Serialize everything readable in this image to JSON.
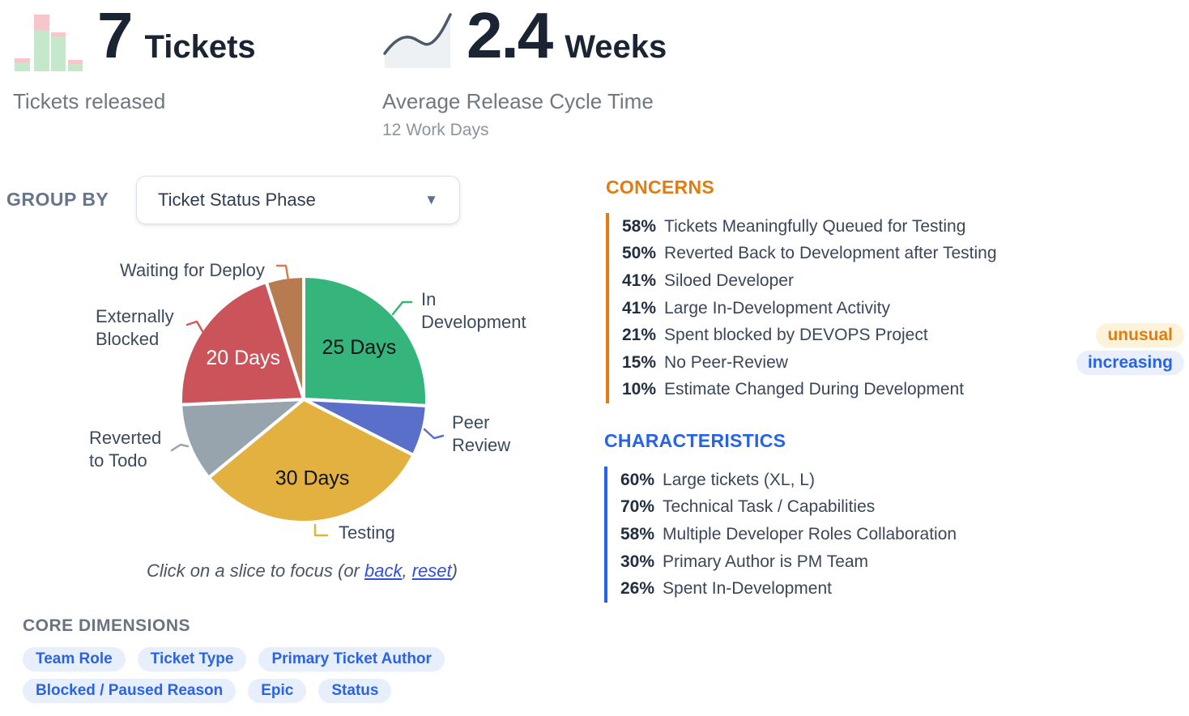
{
  "kpis": {
    "tickets": {
      "value": "7",
      "unit": "Tickets",
      "caption": "Tickets released"
    },
    "cycle": {
      "value": "2.4",
      "unit": "Weeks",
      "caption": "Average Release Cycle Time",
      "subcaption": "12 Work Days"
    }
  },
  "group_by": {
    "label": "GROUP BY",
    "selected_option": "Ticket Status Phase"
  },
  "chart_data": {
    "type": "pie",
    "unit": "days",
    "legend_position": "callout-labels",
    "slices": [
      {
        "label": "In Development",
        "label_lines": [
          "In",
          "Development"
        ],
        "days": 25,
        "inner_label": "25 Days",
        "angle_deg": 93,
        "color": "#35b57c",
        "inner_label_color": "#101418",
        "connector_color": "#35b57c"
      },
      {
        "label": "Peer Review",
        "label_lines": [
          "Peer",
          "Review"
        ],
        "days": 7,
        "inner_label": null,
        "angle_deg": 24,
        "color": "#5a6fca",
        "inner_label_color": null,
        "connector_color": "#5a6fca"
      },
      {
        "label": "Testing",
        "label_lines": [
          "Testing"
        ],
        "days": 30,
        "inner_label": "30 Days",
        "angle_deg": 113.5,
        "color": "#e2b13f",
        "inner_label_color": "#101418",
        "connector_color": "#e2b13f"
      },
      {
        "label": "Reverted to Todo",
        "label_lines": [
          "Reverted",
          "to Todo"
        ],
        "days": 10,
        "inner_label": null,
        "angle_deg": 37,
        "color": "#97a3ad",
        "inner_label_color": null,
        "connector_color": "#97a3ad"
      },
      {
        "label": "Externally Blocked",
        "label_lines": [
          "Externally",
          "Blocked"
        ],
        "days": 20,
        "inner_label": "20 Days",
        "angle_deg": 74.8,
        "color": "#cb545a",
        "inner_label_color": "#ffffff",
        "connector_color": "#d05c55"
      },
      {
        "label": "Waiting for Deploy",
        "label_lines": [
          "Waiting for Deploy"
        ],
        "days": 5,
        "inner_label": null,
        "angle_deg": 17.7,
        "color": "#b87a50",
        "inner_label_color": null,
        "connector_color": "#dd7950"
      }
    ],
    "caption": {
      "before": "Click on a slice to focus (or ",
      "back_link": "back",
      "separator": ", ",
      "reset_link": "reset",
      "after": ")"
    }
  },
  "concerns": {
    "title": "CONCERNS",
    "accent_color": "#e07c12",
    "items": [
      {
        "pct": "58%",
        "text": "Tickets Meaningfully Queued for Testing"
      },
      {
        "pct": "50%",
        "text": "Reverted Back to Development after Testing"
      },
      {
        "pct": "41%",
        "text": "Siloed Developer"
      },
      {
        "pct": "41%",
        "text": "Large In-Development Activity"
      },
      {
        "pct": "21%",
        "text": "Spent blocked by DEVOPS Project",
        "badge": {
          "label": "unusual",
          "color": "#e07c12",
          "background": "#fdf3da"
        }
      },
      {
        "pct": "15%",
        "text": "No Peer-Review",
        "badge": {
          "label": "increasing",
          "color": "#2563eb",
          "background": "#e9effd"
        }
      },
      {
        "pct": "10%",
        "text": "Estimate Changed During Development"
      }
    ]
  },
  "characteristics": {
    "title": "CHARACTERISTICS",
    "accent_color": "#2563eb",
    "items": [
      {
        "pct": "60%",
        "text": "Large tickets (XL, L)"
      },
      {
        "pct": "70%",
        "text": "Technical Task / Capabilities"
      },
      {
        "pct": "58%",
        "text": "Multiple Developer Roles Collaboration"
      },
      {
        "pct": "30%",
        "text": "Primary Author is PM Team"
      },
      {
        "pct": "26%",
        "text": "Spent In-Development"
      }
    ]
  },
  "core_dimensions": {
    "title": "CORE DIMENSIONS",
    "pill_color": "#2b63e8",
    "pill_background": "#e7eefc",
    "rows": [
      [
        "Team Role",
        "Ticket Type",
        "Primary Ticket Author"
      ],
      [
        "Blocked / Paused Reason",
        "Epic",
        "Status"
      ]
    ]
  },
  "icons": {
    "tickets_kpi": "bar-chart-icon",
    "cycle_kpi": "line-chart-icon",
    "dropdown": "chevron-down-icon",
    "bar_green": "#c5e8cd",
    "bar_pink": "#f7c6cb",
    "line_stroke": "#4b5a6b",
    "line_fill": "#eef1f4"
  }
}
